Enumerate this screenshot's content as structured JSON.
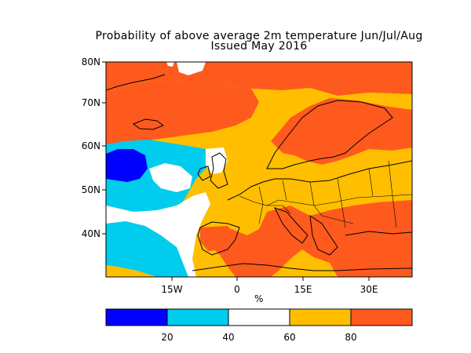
{
  "title": "Probability of above average 2m temperature Jun/Jul/Aug",
  "subtitle": "Issued May 2016",
  "lat_labels": [
    "80N",
    "70N",
    "60N",
    "50N",
    "40N"
  ],
  "lon_labels": [
    "15W",
    "0",
    "15E",
    "30E"
  ],
  "xaxis_unit": "%",
  "colorbar": {
    "tick_labels": [
      "20",
      "40",
      "60",
      "80"
    ],
    "bins": [
      {
        "range": [
          0,
          20
        ],
        "color": "#0000ff"
      },
      {
        "range": [
          20,
          40
        ],
        "color": "#00ccee"
      },
      {
        "range": [
          40,
          60
        ],
        "color": "#ffffff"
      },
      {
        "range": [
          60,
          80
        ],
        "color": "#ffbf00"
      },
      {
        "range": [
          80,
          100
        ],
        "color": "#ff5a1e"
      }
    ]
  },
  "colors": {
    "deep_blue": "#0000ff",
    "cyan": "#00ccee",
    "white": "#ffffff",
    "amber": "#ffbf00",
    "orange_red": "#ff5a1e"
  }
}
